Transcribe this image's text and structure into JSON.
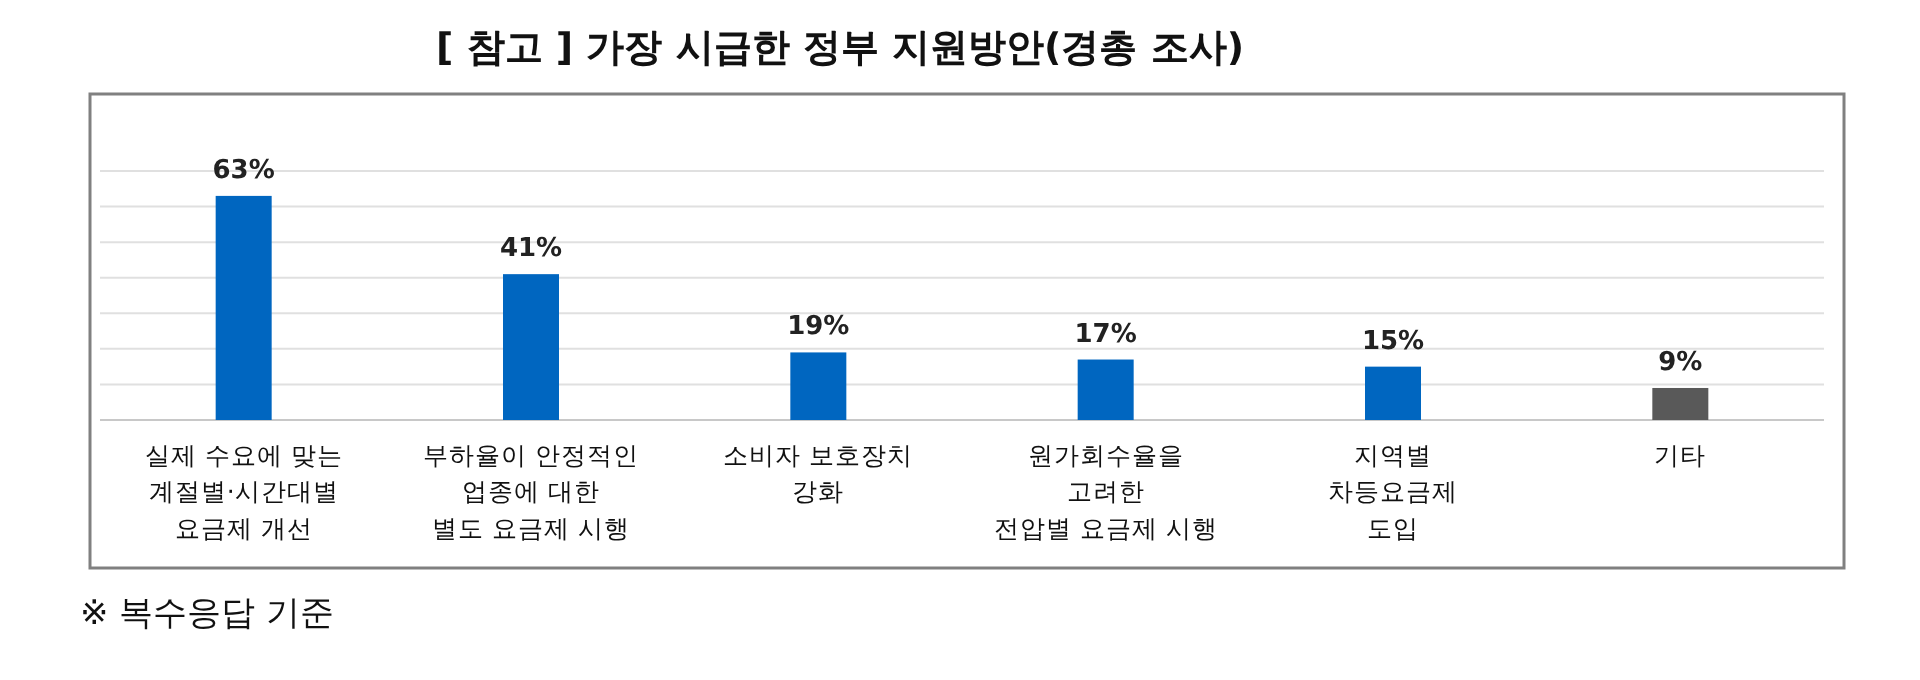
{
  "chart_data": {
    "type": "bar",
    "title": "[ 참고 ] 가장 시급한 정부 지원방안(경총 조사)",
    "categories": [
      "실제 수요에 맞는\n계절별·시간대별\n요금제 개선",
      "부하율이 안정적인\n업종에 대한\n별도 요금제 시행",
      "소비자 보호장치\n강화",
      "원가회수율을\n고려한\n전압별 요금제 시행",
      "지역별\n차등요금제\n도입",
      "기타"
    ],
    "values": [
      63,
      41,
      19,
      17,
      15,
      9
    ],
    "value_labels": [
      "63%",
      "41%",
      "19%",
      "17%",
      "15%",
      "9%"
    ],
    "colors": [
      "#0066c0",
      "#0066c0",
      "#0066c0",
      "#0066c0",
      "#0066c0",
      "#595959"
    ],
    "ylim": [
      0,
      70
    ],
    "yticks": [
      {
        "value": 0,
        "label": null
      },
      {
        "value": 10,
        "label": null
      },
      {
        "value": 20,
        "label": null
      },
      {
        "value": 30,
        "label": null
      },
      {
        "value": 40,
        "label": null
      },
      {
        "value": 50,
        "label": null
      },
      {
        "value": 60,
        "label": null
      },
      {
        "value": 70,
        "label": null
      }
    ],
    "grid": "y",
    "annotations": [
      "※ 복수응답 기준"
    ]
  }
}
